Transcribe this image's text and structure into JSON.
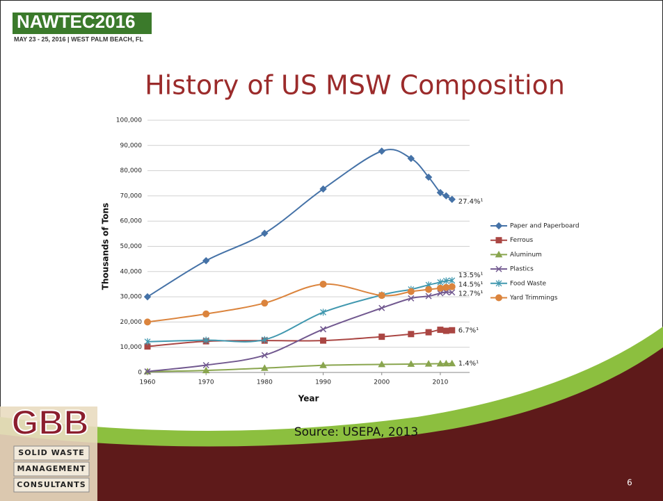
{
  "header": {
    "logo_title": "NAWTEC2016",
    "logo_subtitle": "MAY 23 - 25, 2016 | WEST PALM BEACH, FL",
    "title": "History of US MSW Composition"
  },
  "chart_data": {
    "type": "line",
    "x_label": "Year",
    "y_label": "Thousands of Tons",
    "x": [
      1960,
      1970,
      1980,
      1990,
      2000,
      2005,
      2008,
      2010,
      2011,
      2012
    ],
    "xlim": [
      1960,
      2015
    ],
    "xticks": [
      1960,
      1970,
      1980,
      1990,
      2000,
      2010
    ],
    "ylim": [
      0,
      100000
    ],
    "yticks": [
      0,
      {
        "value": 10000,
        "label": "10,000"
      },
      {
        "value": 20000,
        "label": "20,000"
      },
      {
        "value": 30000,
        "label": "30,000"
      },
      {
        "value": 40000,
        "label": "40,000"
      },
      {
        "value": 50000,
        "label": "50,000"
      },
      {
        "value": 60000,
        "label": "60,000"
      },
      {
        "value": 70000,
        "label": "70,000"
      },
      {
        "value": 80000,
        "label": "80,000"
      },
      {
        "value": 90000,
        "label": "90,000"
      },
      {
        "value": 100000,
        "label": "100,000"
      }
    ],
    "grid": true,
    "smooth": true,
    "legend": "right",
    "series": [
      {
        "name": "Paper and Paperboard",
        "color": "#4572a7",
        "marker": "diamond",
        "end_label": "27.4%¹",
        "values": [
          29990,
          44310,
          55160,
          72730,
          87740,
          84840,
          77420,
          71310,
          70020,
          68620
        ]
      },
      {
        "name": "Ferrous",
        "color": "#aa4643",
        "marker": "square",
        "end_label": "6.7%¹",
        "values": [
          10300,
          12360,
          12620,
          12640,
          14150,
          15210,
          15940,
          16920,
          16510,
          16730
        ]
      },
      {
        "name": "Aluminum",
        "color": "#89a54e",
        "marker": "triangle",
        "end_label": "1.4%¹",
        "values": [
          340,
          800,
          1730,
          2810,
          3190,
          3330,
          3410,
          3480,
          3500,
          3530
        ]
      },
      {
        "name": "Plastics",
        "color": "#71588f",
        "marker": "x",
        "end_label": "12.7%¹",
        "values": [
          390,
          2900,
          6830,
          17130,
          25550,
          29380,
          30260,
          31400,
          31840,
          31750
        ]
      },
      {
        "name": "Food Waste",
        "color": "#4198af",
        "marker": "star",
        "end_label": "13.5%¹",
        "values": [
          12200,
          12800,
          13000,
          23860,
          30700,
          32930,
          34690,
          35740,
          36310,
          36430
        ]
      },
      {
        "name": "Yard Trimmings",
        "color": "#db843d",
        "marker": "circle",
        "end_label": "14.5%¹",
        "values": [
          20000,
          23200,
          27500,
          35000,
          30530,
          32070,
          32900,
          33400,
          33710,
          34000
        ]
      }
    ]
  },
  "footer": {
    "source": "Source:  USEPA, 2013",
    "page_number": "6",
    "logo_mark": "GBB",
    "logo_lines": [
      "SOLID WASTE",
      "MANAGEMENT",
      "CONSULTANTS"
    ]
  }
}
